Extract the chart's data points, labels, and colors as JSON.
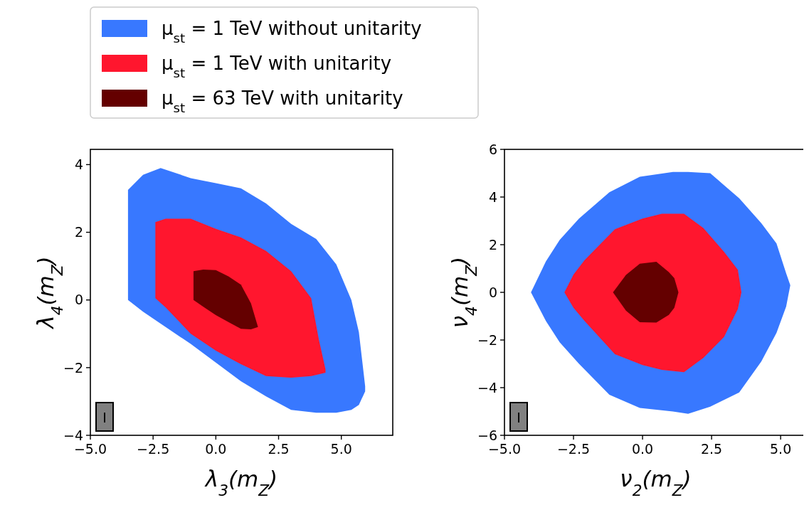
{
  "chart_data": [
    {
      "type": "area",
      "xlabel": "λ$_{3}$(m$_{Z}$)",
      "ylabel": "λ$_{4}$(m$_{Z}$)",
      "legend": "top",
      "xlim": [
        -5,
        7.05
      ],
      "xticks": [
        {
          "value": -5,
          "label": "−5.0"
        },
        {
          "value": -2.5,
          "label": "−2.5"
        },
        {
          "value": 0,
          "label": "0.0"
        },
        {
          "value": 2.5,
          "label": "2.5"
        },
        {
          "value": 5,
          "label": "5.0"
        }
      ],
      "ylim": [
        -4,
        4.45
      ],
      "yticks": [
        {
          "value": -4,
          "label": "−4"
        },
        {
          "value": -2,
          "label": "−2"
        },
        0,
        2,
        4
      ],
      "annotations": [
        "I"
      ],
      "series": [
        {
          "name": "μ$_{st}$ = 1 TeV without unitarity",
          "color": "#3878ff",
          "x": [
            -3.5,
            -2.9,
            -2.2,
            -1,
            0,
            1,
            2,
            3,
            4,
            4.8,
            5.4,
            5.7,
            5.95,
            5.95,
            5.7,
            5.4,
            4.8,
            4,
            3,
            2,
            1,
            0,
            -1,
            -2.2,
            -2.9,
            -3.5
          ],
          "values": [
            3.25,
            3.7,
            3.9,
            3.6,
            3.45,
            3.3,
            2.85,
            2.25,
            1.8,
            1.05,
            0,
            -0.95,
            -2.55,
            -2.7,
            -3.1,
            -3.25,
            -3.33,
            -3.33,
            -3.25,
            -2.85,
            -2.4,
            -1.85,
            -1.3,
            -0.7,
            -0.35,
            0
          ]
        },
        {
          "name": "μ$_{st}$ = 1 TeV with unitarity",
          "color": "#ff162e",
          "x": [
            -2.41,
            -2.0,
            -1,
            0,
            1,
            2,
            3,
            3.8,
            4.1,
            4.37,
            4.37,
            4.1,
            3.8,
            3,
            2,
            1,
            0,
            -1,
            -2.0,
            -2.41
          ],
          "values": [
            2.3,
            2.4,
            2.4,
            2.1,
            1.85,
            1.45,
            0.85,
            0.05,
            -1.15,
            -2.05,
            -2.15,
            -2.2,
            -2.25,
            -2.3,
            -2.25,
            -1.9,
            -1.5,
            -1.0,
            -0.22,
            0.05
          ]
        },
        {
          "name": "μ$_{st}$ = 63 TeV with unitarity",
          "color": "#640000",
          "x": [
            -0.89,
            -0.5,
            0,
            0.5,
            1,
            1.4,
            1.68,
            1.4,
            1,
            0.5,
            0,
            -0.5,
            -0.89
          ],
          "values": [
            0.85,
            0.9,
            0.88,
            0.7,
            0.45,
            -0.1,
            -0.8,
            -0.87,
            -0.85,
            -0.65,
            -0.45,
            -0.2,
            0
          ]
        }
      ]
    },
    {
      "type": "area",
      "xlabel": "ν$_{2}$(m$_{Z}$)",
      "ylabel": "ν$_{4}$(m$_{Z}$)",
      "xlim": [
        -5,
        5.95
      ],
      "xticks": [
        {
          "value": -5,
          "label": "−5.0"
        },
        {
          "value": -2.5,
          "label": "−2.5"
        },
        {
          "value": 0,
          "label": "0.0"
        },
        {
          "value": 2.5,
          "label": "2.5"
        },
        {
          "value": 5,
          "label": "5.0"
        }
      ],
      "ylim": [
        -6,
        6
      ],
      "yticks": [
        {
          "value": -6,
          "label": "−6"
        },
        {
          "value": -4,
          "label": "−4"
        },
        {
          "value": -2,
          "label": "−2"
        },
        0,
        2,
        4,
        6
      ],
      "annotations": [
        "I"
      ],
      "series": [
        {
          "color": "#3878ff",
          "x": [
            -4.04,
            -3.5,
            -3,
            -2.3,
            -1.2,
            -0.1,
            1.1,
            1.65,
            2.45,
            3.5,
            4.3,
            4.85,
            5.2,
            5.35,
            5.2,
            4.85,
            4.3,
            3.5,
            2.45,
            1.65,
            1.1,
            -0.1,
            -1.2,
            -2.3,
            -3,
            -3.5
          ],
          "values": [
            0,
            1.3,
            2.2,
            3.1,
            4.2,
            4.85,
            5.05,
            5.05,
            5.0,
            3.95,
            2.9,
            2.05,
            0.8,
            0.3,
            -0.6,
            -1.7,
            -2.9,
            -4.2,
            -4.8,
            -5.1,
            -5.0,
            -4.85,
            -4.3,
            -3.0,
            -2.1,
            -1.2
          ]
        },
        {
          "color": "#ff162e",
          "x": [
            -2.83,
            -2.5,
            -2.1,
            -1.0,
            0,
            0.7,
            1.5,
            2.2,
            2.95,
            3.45,
            3.58,
            3.45,
            2.95,
            2.2,
            1.5,
            0.7,
            0,
            -1.0,
            -2.1,
            -2.5
          ],
          "values": [
            0,
            0.75,
            1.35,
            2.65,
            3.1,
            3.3,
            3.3,
            2.7,
            1.7,
            0.95,
            0,
            -0.7,
            -1.87,
            -2.75,
            -3.35,
            -3.25,
            -3.05,
            -2.6,
            -1.2,
            -0.65
          ]
        },
        {
          "color": "#640000",
          "x": [
            -1.07,
            -0.6,
            -0.1,
            0.5,
            0.95,
            1.15,
            1.3,
            1.15,
            0.95,
            0.5,
            -0.1,
            -0.6
          ],
          "values": [
            0,
            0.73,
            1.2,
            1.28,
            0.85,
            0.6,
            0,
            -0.65,
            -0.95,
            -1.27,
            -1.25,
            -0.77
          ]
        }
      ]
    }
  ]
}
